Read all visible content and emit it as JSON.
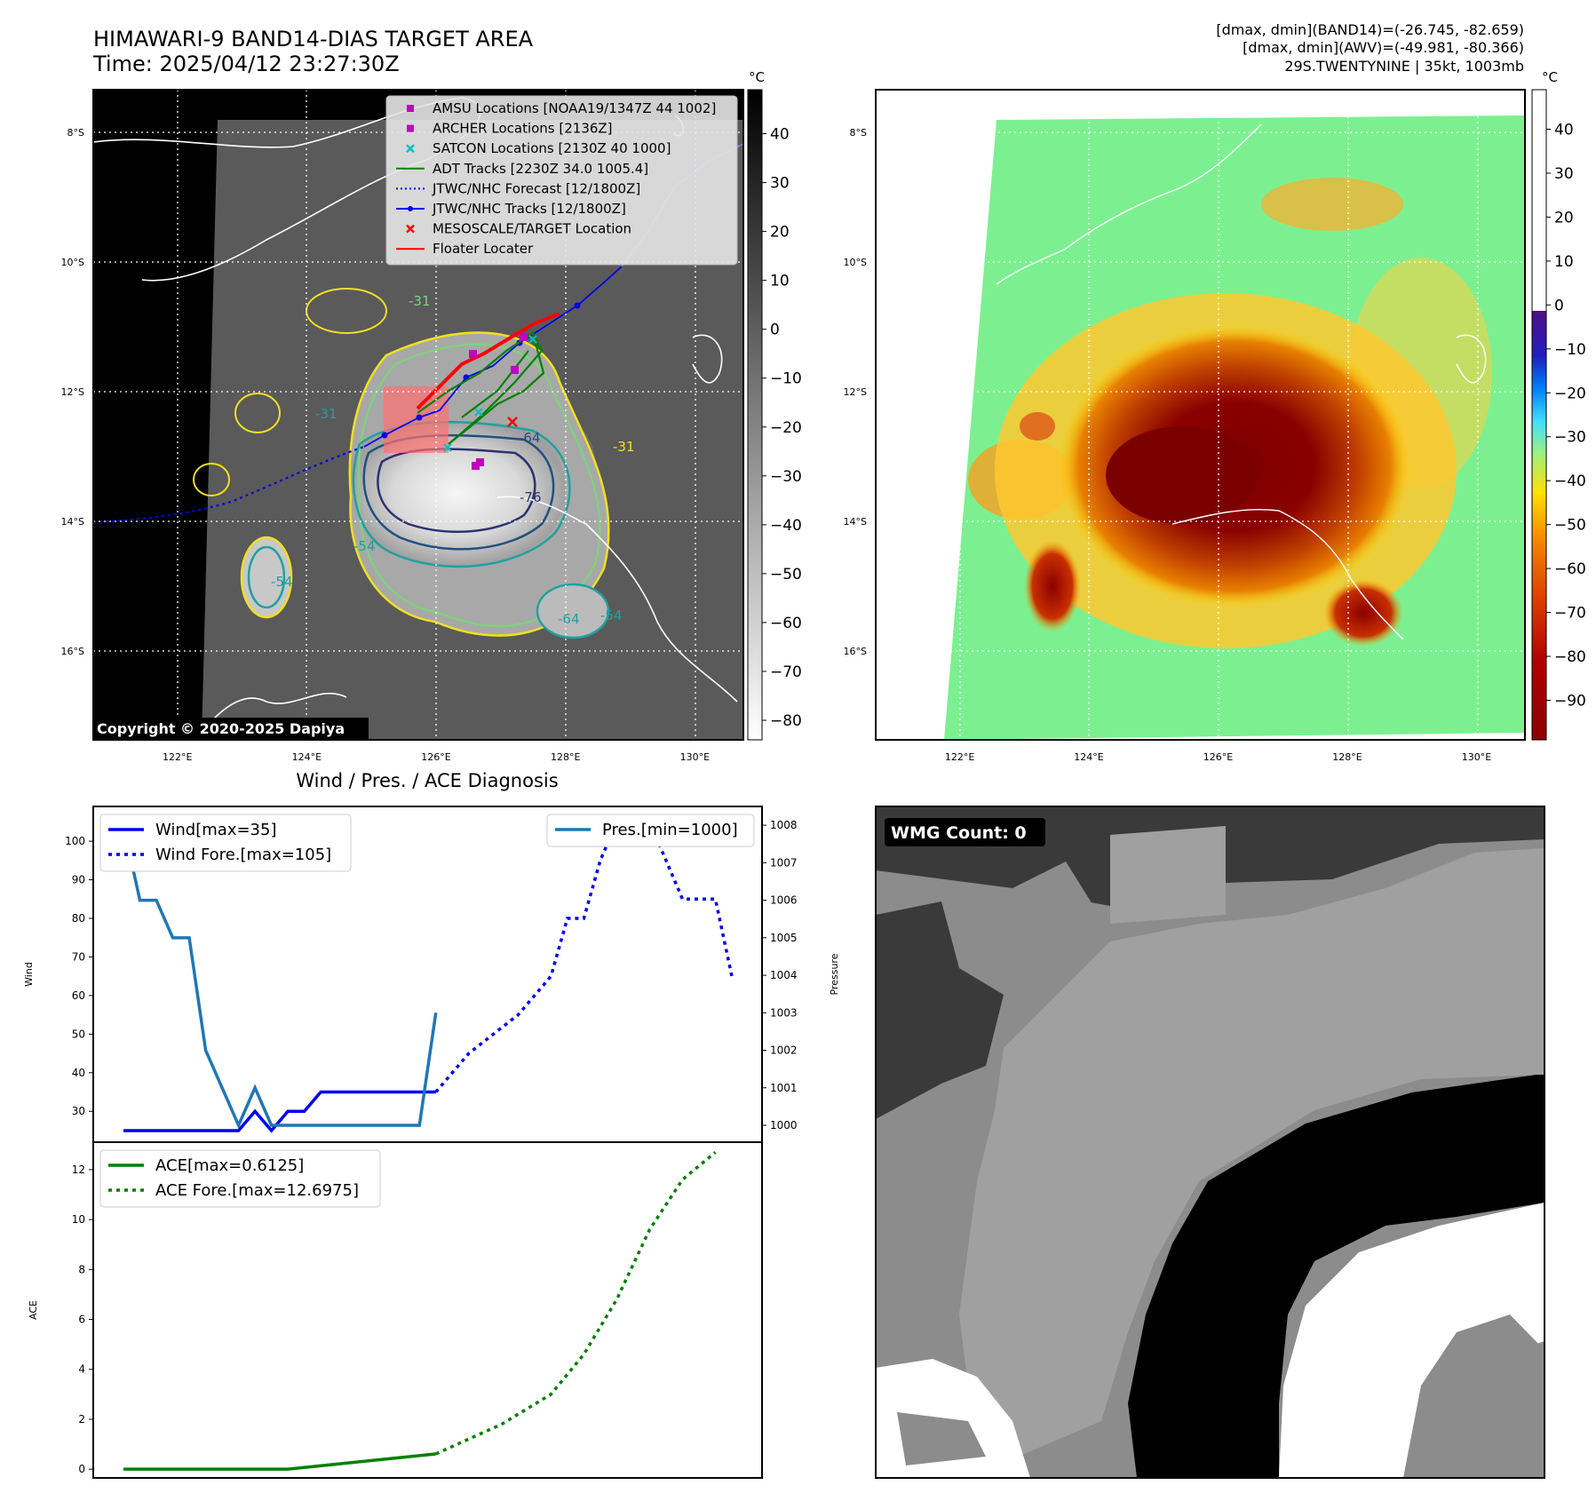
{
  "header": {
    "title_line1": "HIMAWARI-9 BAND14-DIAS TARGET AREA",
    "title_line2": "Time: 2025/04/12 23:27:30Z",
    "info_line1": "[dmax, dmin](BAND14)=(-26.745, -82.659)",
    "info_line2": "[dmax, dmin](AWV)=(-49.981, -80.366)",
    "info_line3": "29S.TWENTYNINE | 35kt, 1003mb"
  },
  "map_axes": {
    "lat_labels": [
      "8°S",
      "10°S",
      "12°S",
      "14°S",
      "16°S"
    ],
    "lon_labels": [
      "122°E",
      "124°E",
      "126°E",
      "128°E",
      "130°E"
    ],
    "lat_values": [
      -8,
      -10,
      -12,
      -14,
      -16
    ],
    "lon_values": [
      122,
      124,
      126,
      128,
      130
    ]
  },
  "colors": {
    "forecast_blue": "#0000ee",
    "wind_line": "#1f77b4",
    "ace_green": "#008000",
    "fix_red": "#ff0000",
    "amsu_magenta": "#c000c0",
    "satcon_cyan": "#00c8c8"
  },
  "ir_panel": {
    "legend": [
      {
        "label": "AMSU Locations [NOAA19/1347Z 44 1002]",
        "symbol": "square",
        "color": "#c000c0"
      },
      {
        "label": "ARCHER Locations [2136Z]",
        "symbol": "square",
        "color": "#c000c0"
      },
      {
        "label": "SATCON Locations [2130Z 40 1000]",
        "symbol": "x",
        "color": "#00c0c0"
      },
      {
        "label": "ADT Tracks [2230Z 34.0 1005.4]",
        "symbol": "line",
        "color": "#008000"
      },
      {
        "label": "JTWC/NHC Forecast [12/1800Z]",
        "symbol": "dotted",
        "color": "#0000ee"
      },
      {
        "label": "JTWC/NHC Tracks [12/1800Z]",
        "symbol": "line-dot",
        "color": "#0000ee"
      },
      {
        "label": "MESOSCALE/TARGET Location",
        "symbol": "x",
        "color": "#ff0000"
      },
      {
        "label": "Floater Locater",
        "symbol": "line",
        "color": "#ff0000"
      }
    ],
    "colorbar_unit": "°C",
    "colorbar_ticks": [
      "40",
      "30",
      "20",
      "10",
      "0",
      "−10",
      "−20",
      "−30",
      "−40",
      "−50",
      "−60",
      "−70",
      "−80"
    ],
    "colorbar_values": [
      40,
      30,
      20,
      10,
      0,
      -10,
      -20,
      -30,
      -40,
      -50,
      -60,
      -70,
      -80
    ],
    "colorbar_range": [
      -84,
      49
    ],
    "contour_labels": [
      "-31",
      "-31",
      "-54",
      "-64",
      "-76",
      "-54",
      "-54",
      "-64",
      "-31"
    ],
    "copyright": "Copyright © 2020-2025 Dapiya"
  },
  "awv_panel": {
    "colorbar_unit": "°C",
    "colorbar_ticks": [
      "40",
      "30",
      "20",
      "10",
      "0",
      "−10",
      "−20",
      "−30",
      "−40",
      "−50",
      "−60",
      "−70",
      "−80",
      "−90"
    ],
    "colorbar_values": [
      40,
      30,
      20,
      10,
      0,
      -10,
      -20,
      -30,
      -40,
      -50,
      -60,
      -70,
      -80,
      -90
    ],
    "colorbar_range": [
      -99,
      49
    ]
  },
  "diagnosis": {
    "title": "Wind / Pres. / ACE Diagnosis",
    "wind_ylabel": "Wind",
    "pres_ylabel": "Pressure",
    "ace_ylabel": "ACE",
    "legend_wind": "Wind[max=35]",
    "legend_wind_fore": "Wind Fore.[max=105]",
    "legend_pres": "Pres.[min=1000]",
    "legend_ace": "ACE[max=0.6125]",
    "legend_ace_fore": "ACE Fore.[max=12.6975]",
    "wind_ticks": [
      "100",
      "90",
      "80",
      "70",
      "60",
      "50",
      "40",
      "30"
    ],
    "pres_ticks": [
      "1008",
      "1007",
      "1006",
      "1005",
      "1004",
      "1003",
      "1002",
      "1001",
      "1000"
    ],
    "ace_ticks": [
      "12",
      "10",
      "8",
      "6",
      "4",
      "2",
      "0"
    ]
  },
  "chart_data": [
    {
      "type": "line",
      "title": "Wind / Pres. / ACE Diagnosis",
      "ylabel": "Wind",
      "y2label": "Pressure",
      "ylim": [
        22,
        109
      ],
      "y2lim": [
        999.55,
        1008.5
      ],
      "xlim": [
        0,
        38
      ],
      "series": [
        {
          "name": "Wind[max=35]",
          "axis": "left",
          "style": "solid",
          "color": "#0000ee",
          "x": [
            1,
            8,
            9,
            10,
            11,
            12,
            13,
            14,
            15,
            16,
            20
          ],
          "y": [
            25,
            25,
            30,
            25,
            30,
            30,
            35,
            35,
            35,
            35,
            35
          ]
        },
        {
          "name": "Wind Fore.[max=105]",
          "axis": "left",
          "style": "dotted",
          "color": "#0000ee",
          "x": [
            20,
            22,
            25,
            27,
            28,
            29,
            30,
            31,
            32,
            33,
            35,
            36,
            37,
            38
          ],
          "y": [
            35,
            45,
            55,
            65,
            80,
            80,
            95,
            105,
            105,
            105,
            85,
            85,
            85,
            65
          ]
        },
        {
          "name": "Pres.[min=1000]",
          "axis": "right",
          "style": "solid",
          "color": "#1f77b4",
          "x": [
            1,
            2,
            3,
            4,
            5,
            6,
            7,
            8,
            9,
            10,
            11,
            12,
            13,
            14,
            15,
            16,
            17,
            18,
            19,
            20
          ],
          "y": [
            1008,
            1006,
            1006,
            1005,
            1005,
            1002,
            1001,
            1000,
            1001,
            1000,
            1000,
            1000,
            1000,
            1000,
            1000,
            1000,
            1000,
            1000,
            1000,
            1003
          ]
        }
      ]
    },
    {
      "type": "line",
      "ylabel": "ACE",
      "ylim": [
        -0.35,
        13.1
      ],
      "xlim": [
        0,
        38
      ],
      "series": [
        {
          "name": "ACE[max=0.6125]",
          "style": "solid",
          "color": "#008000",
          "x": [
            1,
            11,
            20
          ],
          "y": [
            0,
            0,
            0.6125
          ]
        },
        {
          "name": "ACE Fore.[max=12.6975]",
          "style": "dotted",
          "color": "#008000",
          "x": [
            20,
            24,
            27,
            29,
            31,
            33,
            35,
            37
          ],
          "y": [
            0.6125,
            1.8,
            3.0,
            4.6,
            6.8,
            9.6,
            11.6,
            12.6975
          ]
        }
      ]
    }
  ],
  "wmg_panel": {
    "count_label": "WMG Count: 0"
  }
}
